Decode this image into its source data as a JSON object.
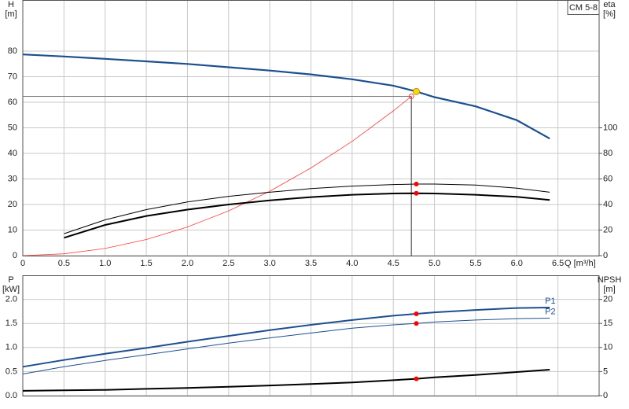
{
  "chart_data": [
    {
      "type": "line",
      "legend_box": "CM 5-8",
      "ylabel": [
        "H",
        "[m]"
      ],
      "y2label": [
        "eta",
        "[%]"
      ],
      "xlabel": "Q [m³/h]",
      "xlim": [
        0,
        7
      ],
      "xticks": [
        0,
        0.5,
        {
          "value": 1,
          "label": "1.0"
        },
        1.5,
        {
          "value": 2,
          "label": "2.0"
        },
        2.5,
        {
          "value": 3,
          "label": "3.0"
        },
        3.5,
        {
          "value": 4,
          "label": "4.0"
        },
        4.5,
        {
          "value": 5,
          "label": "5.0"
        },
        5.5,
        {
          "value": 6,
          "label": "6.0"
        },
        6.5
      ],
      "ylim": [
        0,
        100
      ],
      "yticks": [
        0,
        10,
        20,
        30,
        40,
        50,
        60,
        70,
        80
      ],
      "y2lim": [
        0,
        200
      ],
      "y2ticks": [
        0,
        20,
        40,
        60,
        80,
        100
      ],
      "grid": true,
      "series": [
        {
          "color": "#1c4f8f",
          "width": 2.2,
          "x": [
            0,
            0.5,
            1,
            1.5,
            2,
            2.5,
            3,
            3.5,
            4,
            4.5,
            4.78,
            5,
            5.5,
            6,
            6.4
          ],
          "values": [
            78.7,
            77.9,
            77,
            76,
            75,
            73.7,
            72.4,
            70.9,
            69,
            66.5,
            64.2,
            62,
            58.4,
            53,
            45.8
          ]
        },
        {
          "color": "#ff3b3b",
          "width": 0.8,
          "x": [
            0,
            0.5,
            1,
            1.5,
            2,
            2.5,
            3,
            3.5,
            4,
            4.5,
            4.72
          ],
          "values": [
            0,
            0.7,
            2.8,
            6.3,
            11.2,
            17.5,
            25.2,
            34.3,
            44.7,
            56.6,
            62.3
          ]
        },
        {
          "color": "#000000",
          "width": 1,
          "axis": "y2",
          "x": [
            0.5,
            1,
            1.5,
            2,
            2.5,
            3,
            3.5,
            4,
            4.5,
            4.78,
            5,
            5.5,
            6,
            6.4
          ],
          "values": [
            17.2,
            28,
            36,
            42,
            46.4,
            49.6,
            52.4,
            54.4,
            55.6,
            56,
            56,
            55.2,
            52.8,
            49.6
          ]
        },
        {
          "color": "#000000",
          "width": 2,
          "axis": "y2",
          "x": [
            0.5,
            1,
            1.5,
            2,
            2.5,
            3,
            3.5,
            4,
            4.5,
            4.78,
            5,
            5.5,
            6,
            6.4
          ],
          "values": [
            14,
            24,
            31,
            36,
            40,
            43.2,
            45.8,
            47.6,
            48.6,
            48.8,
            48.6,
            47.6,
            46,
            43.6
          ]
        }
      ],
      "duty_point": {
        "x": 4.72,
        "y": 62.3
      },
      "markers": [
        {
          "x": 4.78,
          "y": 64.2,
          "color": "#ffd700"
        },
        {
          "x": 4.78,
          "y": 56,
          "color": "#ff0000",
          "axis": "y2"
        },
        {
          "x": 4.78,
          "y": 48.8,
          "color": "#ff0000",
          "axis": "y2"
        }
      ]
    },
    {
      "type": "line",
      "ylabel": [
        "P",
        "[kW]"
      ],
      "y2label": [
        "NPSH",
        "[m]"
      ],
      "xlim": [
        0,
        7
      ],
      "ylim": [
        0,
        2.5
      ],
      "yticks": [
        {
          "value": 0,
          "label": "0.0"
        },
        0.5,
        {
          "value": 1,
          "label": "1.0"
        },
        1.5,
        {
          "value": 2,
          "label": "2.0"
        }
      ],
      "y2lim": [
        0,
        25
      ],
      "y2ticks": [
        0,
        5,
        10,
        15,
        20
      ],
      "grid": true,
      "series": [
        {
          "name": "P1",
          "color": "#1c4f8f",
          "width": 2,
          "x": [
            0,
            0.5,
            1,
            1.5,
            2,
            2.5,
            3,
            3.5,
            4,
            4.5,
            4.78,
            5,
            5.5,
            6,
            6.4
          ],
          "values": [
            0.6,
            0.74,
            0.87,
            0.99,
            1.12,
            1.24,
            1.36,
            1.47,
            1.57,
            1.66,
            1.7,
            1.73,
            1.78,
            1.82,
            1.83
          ]
        },
        {
          "name": "P2",
          "color": "#1c4f8f",
          "width": 1,
          "x": [
            0,
            0.5,
            1,
            1.5,
            2,
            2.5,
            3,
            3.5,
            4,
            4.5,
            4.78,
            5,
            5.5,
            6,
            6.4
          ],
          "values": [
            0.45,
            0.6,
            0.73,
            0.85,
            0.97,
            1.09,
            1.2,
            1.3,
            1.4,
            1.47,
            1.5,
            1.53,
            1.57,
            1.6,
            1.61
          ]
        },
        {
          "color": "#000000",
          "width": 2,
          "axis": "y2",
          "x": [
            0,
            0.5,
            1,
            1.5,
            2,
            2.5,
            3,
            3.5,
            4,
            4.5,
            4.78,
            5,
            5.5,
            6,
            6.4
          ],
          "values": [
            1,
            1.1,
            1.2,
            1.4,
            1.6,
            1.85,
            2.1,
            2.4,
            2.75,
            3.2,
            3.5,
            3.8,
            4.3,
            4.9,
            5.4
          ]
        }
      ],
      "markers": [
        {
          "x": 4.78,
          "y": 1.7,
          "color": "#ff0000"
        },
        {
          "x": 4.78,
          "y": 1.5,
          "color": "#ff0000"
        },
        {
          "x": 4.78,
          "y": 3.5,
          "color": "#ff0000",
          "axis": "y2"
        }
      ]
    }
  ]
}
